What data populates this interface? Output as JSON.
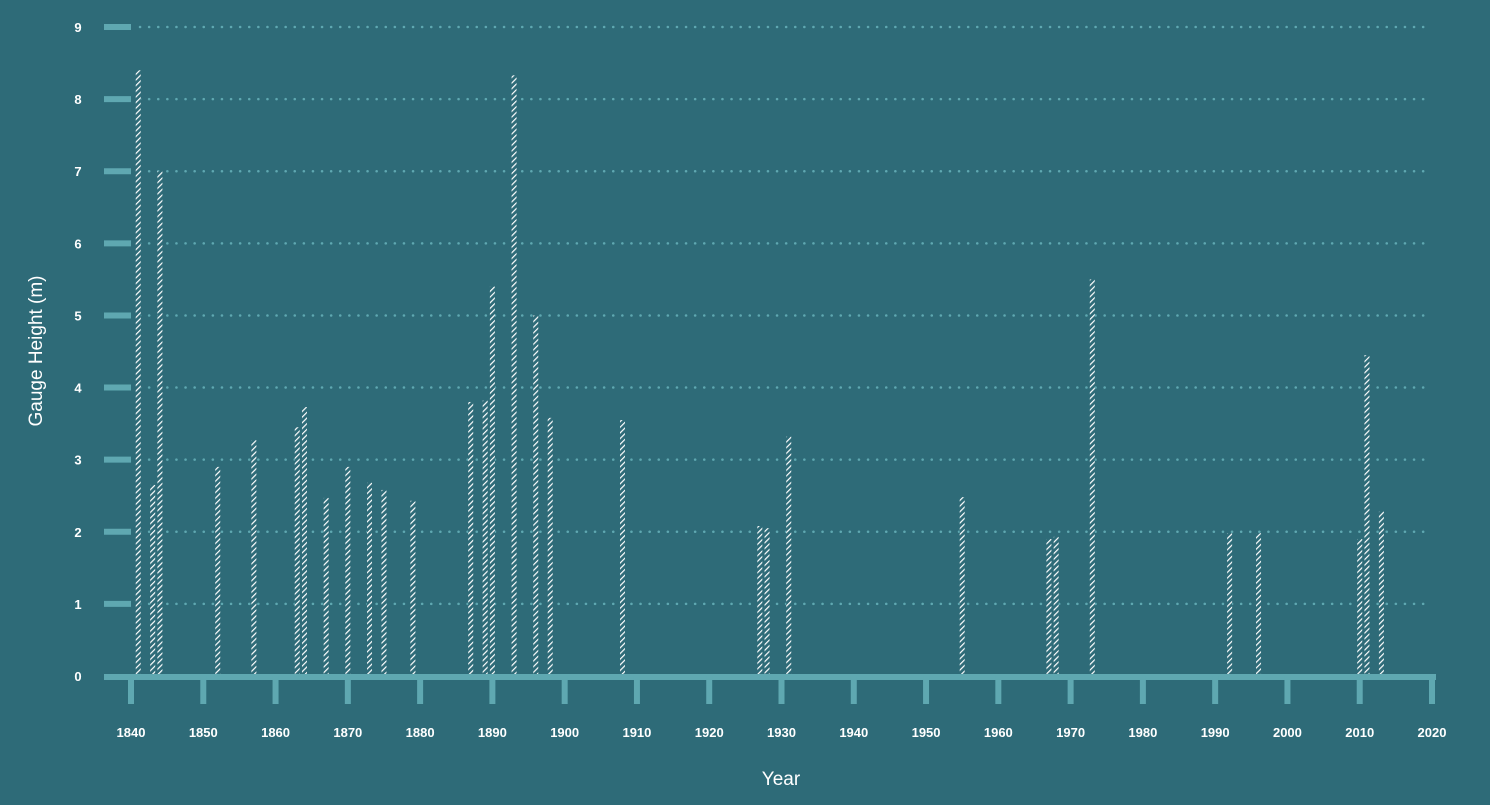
{
  "chart_data": {
    "type": "bar",
    "title": "",
    "xlabel": "Year",
    "ylabel": "Gauge Height (m)",
    "xlim": [
      1840,
      2020
    ],
    "ylim": [
      0,
      9
    ],
    "x_ticks": [
      "1840",
      "1850",
      "1860",
      "1870",
      "1880",
      "1890",
      "1900",
      "1910",
      "1920",
      "1930",
      "1940",
      "1950",
      "1960",
      "1970",
      "1980",
      "1990",
      "2000",
      "2010",
      "2020"
    ],
    "y_ticks": [
      "0",
      "1",
      "2",
      "3",
      "4",
      "5",
      "6",
      "7",
      "8",
      "9"
    ],
    "grid": true,
    "bar_fill": "hatched white",
    "colors": {
      "background": "#2e6b78",
      "axis": "#5fa8b1",
      "grid": "#5fa8b1",
      "bar": "#ffffff"
    },
    "x": [
      1841,
      1843,
      1844,
      1852,
      1857,
      1863,
      1864,
      1867,
      1870,
      1873,
      1875,
      1879,
      1887,
      1889,
      1890,
      1893,
      1896,
      1898,
      1908,
      1927,
      1928,
      1931,
      1955,
      1967,
      1968,
      1973,
      1992,
      1996,
      2010,
      2011,
      2013
    ],
    "values": [
      8.4,
      2.65,
      7.0,
      2.9,
      3.27,
      3.45,
      3.73,
      2.47,
      2.9,
      2.68,
      2.58,
      2.43,
      3.8,
      3.82,
      5.4,
      8.33,
      5.0,
      3.58,
      3.55,
      2.08,
      2.05,
      3.32,
      2.48,
      1.9,
      1.93,
      5.5,
      1.98,
      1.98,
      1.9,
      4.45,
      2.28
    ]
  }
}
